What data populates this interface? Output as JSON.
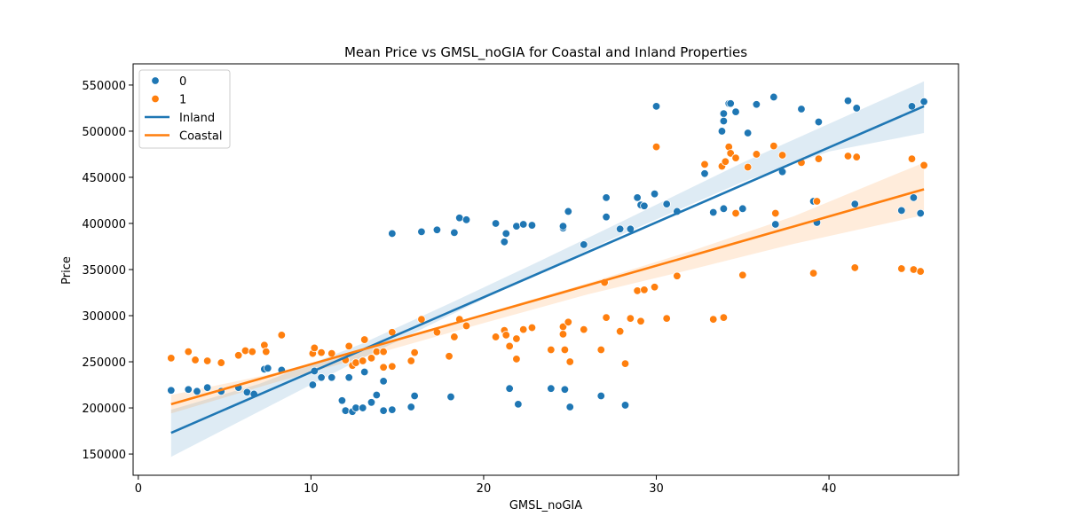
{
  "chart_data": {
    "type": "scatter",
    "title": "Mean Price vs GMSL_noGIA for Coastal and Inland Properties",
    "xlabel": "GMSL_noGIA",
    "ylabel": "Price",
    "xlim": [
      -0.3,
      47.5
    ],
    "ylim": [
      127000,
      573000
    ],
    "xticks": [
      0,
      10,
      20,
      30,
      40
    ],
    "xtick_labels": [
      "0",
      "10",
      "20",
      "30",
      "40"
    ],
    "yticks": [
      150000,
      200000,
      250000,
      300000,
      350000,
      400000,
      450000,
      500000,
      550000
    ],
    "ytick_labels": [
      "150000",
      "200000",
      "250000",
      "300000",
      "350000",
      "400000",
      "450000",
      "500000",
      "550000"
    ],
    "grid": false,
    "legend": {
      "position": "top-left",
      "entries": [
        {
          "label": "0",
          "kind": "marker",
          "color": "#1f77b4"
        },
        {
          "label": "1",
          "kind": "marker",
          "color": "#ff7f0e"
        },
        {
          "label": "Inland",
          "kind": "line",
          "color": "#1f77b4"
        },
        {
          "label": "Coastal",
          "kind": "line",
          "color": "#ff7f0e"
        }
      ]
    },
    "series": [
      {
        "name": "0",
        "kind": "scatter",
        "color": "#1f77b4",
        "points": [
          [
            1.9,
            219000
          ],
          [
            2.9,
            220000
          ],
          [
            3.4,
            218000
          ],
          [
            4.0,
            222000
          ],
          [
            4.8,
            218000
          ],
          [
            5.8,
            222000
          ],
          [
            6.3,
            217000
          ],
          [
            6.7,
            215000
          ],
          [
            7.3,
            242000
          ],
          [
            7.5,
            243000
          ],
          [
            8.3,
            241000
          ],
          [
            10.1,
            225000
          ],
          [
            10.2,
            240000
          ],
          [
            10.6,
            233000
          ],
          [
            11.2,
            233000
          ],
          [
            11.8,
            208000
          ],
          [
            12.0,
            197000
          ],
          [
            12.2,
            233000
          ],
          [
            12.4,
            196000
          ],
          [
            12.6,
            200000
          ],
          [
            13.0,
            200000
          ],
          [
            13.1,
            239000
          ],
          [
            13.5,
            206000
          ],
          [
            13.8,
            214000
          ],
          [
            14.2,
            229000
          ],
          [
            14.2,
            197000
          ],
          [
            14.7,
            198000
          ],
          [
            14.7,
            389000
          ],
          [
            15.8,
            201000
          ],
          [
            16.0,
            213000
          ],
          [
            16.4,
            391000
          ],
          [
            17.3,
            393000
          ],
          [
            18.1,
            212000
          ],
          [
            18.3,
            390000
          ],
          [
            18.6,
            406000
          ],
          [
            19.0,
            404000
          ],
          [
            20.7,
            400000
          ],
          [
            21.2,
            380000
          ],
          [
            21.3,
            389000
          ],
          [
            21.5,
            221000
          ],
          [
            21.9,
            397000
          ],
          [
            22.0,
            204000
          ],
          [
            22.3,
            399000
          ],
          [
            22.8,
            398000
          ],
          [
            23.9,
            221000
          ],
          [
            24.6,
            395000
          ],
          [
            24.6,
            397000
          ],
          [
            24.7,
            220000
          ],
          [
            24.9,
            413000
          ],
          [
            25.0,
            201000
          ],
          [
            25.8,
            377000
          ],
          [
            26.8,
            213000
          ],
          [
            27.1,
            428000
          ],
          [
            27.1,
            407000
          ],
          [
            27.9,
            394000
          ],
          [
            28.2,
            203000
          ],
          [
            28.5,
            394000
          ],
          [
            28.9,
            428000
          ],
          [
            29.1,
            420000
          ],
          [
            29.3,
            419000
          ],
          [
            29.9,
            432000
          ],
          [
            30.0,
            527000
          ],
          [
            30.6,
            421000
          ],
          [
            31.2,
            413000
          ],
          [
            32.8,
            454000
          ],
          [
            33.3,
            412000
          ],
          [
            33.8,
            500000
          ],
          [
            33.9,
            519000
          ],
          [
            33.9,
            511000
          ],
          [
            33.9,
            416000
          ],
          [
            34.2,
            530000
          ],
          [
            34.3,
            530000
          ],
          [
            34.6,
            521000
          ],
          [
            35.0,
            416000
          ],
          [
            35.3,
            498000
          ],
          [
            35.8,
            529000
          ],
          [
            36.8,
            537000
          ],
          [
            36.9,
            399000
          ],
          [
            37.3,
            456000
          ],
          [
            38.4,
            524000
          ],
          [
            39.1,
            424000
          ],
          [
            39.3,
            401000
          ],
          [
            39.4,
            510000
          ],
          [
            41.1,
            533000
          ],
          [
            41.5,
            421000
          ],
          [
            41.6,
            525000
          ],
          [
            44.2,
            414000
          ],
          [
            44.8,
            527000
          ],
          [
            44.9,
            428000
          ],
          [
            45.3,
            411000
          ],
          [
            45.5,
            532000
          ]
        ]
      },
      {
        "name": "1",
        "kind": "scatter",
        "color": "#ff7f0e",
        "points": [
          [
            1.9,
            254000
          ],
          [
            2.9,
            261000
          ],
          [
            3.3,
            252000
          ],
          [
            4.0,
            251000
          ],
          [
            4.8,
            249000
          ],
          [
            5.8,
            257000
          ],
          [
            6.2,
            262000
          ],
          [
            6.6,
            261000
          ],
          [
            7.3,
            268000
          ],
          [
            7.4,
            261000
          ],
          [
            8.3,
            279000
          ],
          [
            10.1,
            259000
          ],
          [
            10.2,
            265000
          ],
          [
            10.6,
            260000
          ],
          [
            11.2,
            259000
          ],
          [
            12.0,
            252000
          ],
          [
            12.2,
            267000
          ],
          [
            12.4,
            246000
          ],
          [
            12.6,
            249000
          ],
          [
            13.0,
            251000
          ],
          [
            13.1,
            274000
          ],
          [
            13.5,
            254000
          ],
          [
            13.8,
            261000
          ],
          [
            14.2,
            261000
          ],
          [
            14.2,
            244000
          ],
          [
            14.7,
            282000
          ],
          [
            14.7,
            245000
          ],
          [
            15.8,
            251000
          ],
          [
            16.0,
            260000
          ],
          [
            16.4,
            296000
          ],
          [
            17.3,
            282000
          ],
          [
            18.0,
            256000
          ],
          [
            18.3,
            277000
          ],
          [
            18.6,
            296000
          ],
          [
            19.0,
            289000
          ],
          [
            20.7,
            277000
          ],
          [
            21.2,
            284000
          ],
          [
            21.3,
            279000
          ],
          [
            21.5,
            267000
          ],
          [
            21.9,
            253000
          ],
          [
            21.9,
            275000
          ],
          [
            22.3,
            285000
          ],
          [
            22.8,
            287000
          ],
          [
            23.9,
            263000
          ],
          [
            24.6,
            280000
          ],
          [
            24.6,
            288000
          ],
          [
            24.7,
            263000
          ],
          [
            24.9,
            293000
          ],
          [
            25.0,
            250000
          ],
          [
            25.8,
            285000
          ],
          [
            26.8,
            263000
          ],
          [
            27.0,
            336000
          ],
          [
            27.1,
            298000
          ],
          [
            27.9,
            283000
          ],
          [
            28.2,
            248000
          ],
          [
            28.5,
            297000
          ],
          [
            28.9,
            327000
          ],
          [
            29.1,
            294000
          ],
          [
            29.3,
            328000
          ],
          [
            29.9,
            331000
          ],
          [
            30.0,
            483000
          ],
          [
            30.6,
            297000
          ],
          [
            31.2,
            343000
          ],
          [
            32.8,
            464000
          ],
          [
            33.3,
            296000
          ],
          [
            33.8,
            462000
          ],
          [
            33.9,
            298000
          ],
          [
            34.0,
            467000
          ],
          [
            34.2,
            483000
          ],
          [
            34.3,
            476000
          ],
          [
            34.6,
            471000
          ],
          [
            34.6,
            411000
          ],
          [
            35.0,
            344000
          ],
          [
            35.3,
            461000
          ],
          [
            35.8,
            475000
          ],
          [
            36.8,
            484000
          ],
          [
            36.9,
            411000
          ],
          [
            37.3,
            474000
          ],
          [
            38.4,
            466000
          ],
          [
            39.1,
            346000
          ],
          [
            39.3,
            424000
          ],
          [
            39.4,
            470000
          ],
          [
            41.1,
            473000
          ],
          [
            41.5,
            352000
          ],
          [
            41.6,
            472000
          ],
          [
            44.2,
            351000
          ],
          [
            44.8,
            470000
          ],
          [
            44.9,
            350000
          ],
          [
            45.3,
            348000
          ],
          [
            45.5,
            463000
          ]
        ]
      }
    ],
    "regressions": [
      {
        "name": "Inland",
        "color": "#1f77b4",
        "line": [
          [
            1.9,
            173000
          ],
          [
            45.5,
            527000
          ]
        ],
        "ci_lower": [
          [
            1.9,
            147000
          ],
          [
            13.0,
            254000
          ],
          [
            18.0,
            300000
          ],
          [
            23.0,
            345000
          ],
          [
            28.0,
            388000
          ],
          [
            35.0,
            445000
          ],
          [
            40.0,
            478000
          ],
          [
            45.5,
            498000
          ]
        ],
        "ci_upper": [
          [
            1.9,
            198000
          ],
          [
            7.0,
            226000
          ],
          [
            13.0,
            270000
          ],
          [
            18.0,
            313000
          ],
          [
            23.0,
            357000
          ],
          [
            28.0,
            402000
          ],
          [
            35.0,
            466000
          ],
          [
            40.0,
            508000
          ],
          [
            45.5,
            554000
          ]
        ]
      },
      {
        "name": "Coastal",
        "color": "#ff7f0e",
        "line": [
          [
            1.9,
            204000
          ],
          [
            45.5,
            437000
          ]
        ],
        "ci_lower": [
          [
            1.9,
            194000
          ],
          [
            8.0,
            228000
          ],
          [
            14.0,
            260000
          ],
          [
            20.0,
            292000
          ],
          [
            26.0,
            323000
          ],
          [
            32.0,
            350000
          ],
          [
            38.0,
            378000
          ],
          [
            45.5,
            409000
          ]
        ],
        "ci_upper": [
          [
            1.9,
            214000
          ],
          [
            8.0,
            238000
          ],
          [
            14.0,
            270000
          ],
          [
            20.0,
            302000
          ],
          [
            26.0,
            335000
          ],
          [
            32.0,
            370000
          ],
          [
            38.0,
            408000
          ],
          [
            45.5,
            466000
          ]
        ]
      }
    ]
  }
}
